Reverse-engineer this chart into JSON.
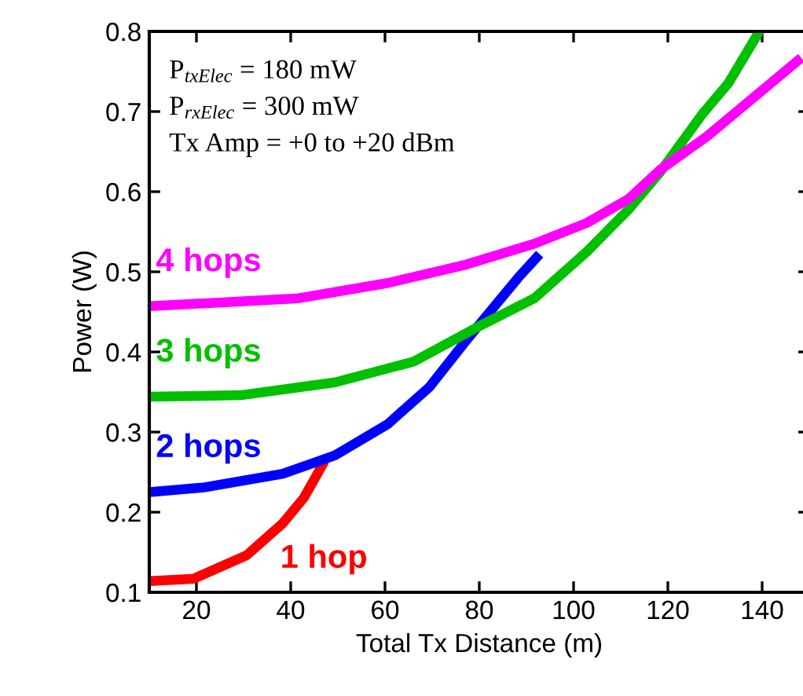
{
  "chart_data": {
    "type": "line",
    "xlabel": "Total Tx Distance (m)",
    "ylabel": "Power (W)",
    "xlim": [
      10,
      150
    ],
    "ylim": [
      0.1,
      0.8
    ],
    "xticks": [
      20,
      40,
      60,
      80,
      100,
      120,
      140
    ],
    "yticks": [
      0.1,
      0.2,
      0.3,
      0.4,
      0.5,
      0.6,
      0.7,
      0.8
    ],
    "grid": false,
    "marker": "none",
    "line_style": "solid",
    "annotations": [
      "P$_{txElec}$ = 180 mW",
      "P$_{rxElec}$ = 300 mW",
      "Tx Amp = +0 to +20 dBm"
    ],
    "series": [
      {
        "name": "1 hop",
        "color": "#ff0000",
        "x": [
          10,
          19.4,
          30.6,
          38.3,
          42.8,
          47.2
        ],
        "values": [
          0.114,
          0.117,
          0.146,
          0.186,
          0.218,
          0.264
        ]
      },
      {
        "name": "2 hops",
        "color": "#0000ff",
        "x": [
          10,
          21.7,
          38.3,
          49.4,
          60.6,
          69.4,
          77.2,
          82.8,
          88.3,
          92.8
        ],
        "values": [
          0.225,
          0.231,
          0.248,
          0.271,
          0.31,
          0.356,
          0.414,
          0.454,
          0.493,
          0.522
        ]
      },
      {
        "name": "3 hops",
        "color": "#00c000",
        "x": [
          10,
          29.4,
          49.4,
          66.1,
          80.6,
          91.7,
          102.8,
          111.7,
          118.3,
          127.2,
          132.8,
          139.4
        ],
        "values": [
          0.344,
          0.346,
          0.362,
          0.388,
          0.434,
          0.467,
          0.525,
          0.578,
          0.624,
          0.696,
          0.735,
          0.8
        ]
      },
      {
        "name": "4 hops",
        "color": "#ff00ff",
        "x": [
          10,
          41.7,
          60.6,
          77.2,
          91.7,
          102.8,
          111.7,
          118.3,
          128.3,
          138.3,
          148.3
        ],
        "values": [
          0.457,
          0.467,
          0.486,
          0.509,
          0.535,
          0.561,
          0.591,
          0.627,
          0.669,
          0.718,
          0.767
        ]
      }
    ]
  }
}
